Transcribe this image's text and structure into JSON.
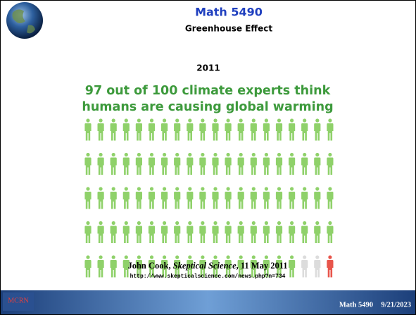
{
  "header": {
    "title": "Math 5490",
    "subtitle": "Greenhouse Effect"
  },
  "year": "2011",
  "headline": [
    "97 out of 100 climate experts think",
    "humans are causing global warming"
  ],
  "caption": {
    "author": "John Cook, ",
    "publication": "Skeptical Science",
    "date": ", 11 May 2011",
    "url": "http://www.skepticalscience.com/news.php?n=734"
  },
  "footer": {
    "logo": "MCRN",
    "course": "Math 5490",
    "date": "9/21/2023"
  }
}
